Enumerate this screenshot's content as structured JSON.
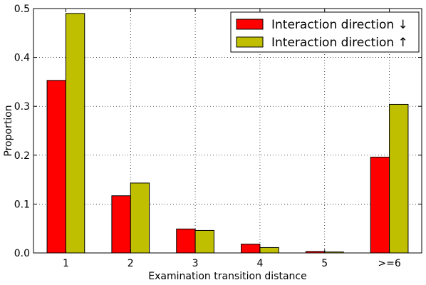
{
  "chart_data": {
    "type": "bar",
    "categories": [
      "1",
      "2",
      "3",
      "4",
      "5",
      ">=6"
    ],
    "series": [
      {
        "name": "Interaction direction ↓",
        "color": "#ff0000",
        "values": [
          0.353,
          0.117,
          0.049,
          0.018,
          0.003,
          0.196
        ]
      },
      {
        "name": "Interaction direction ↑",
        "color": "#bfbf00",
        "values": [
          0.49,
          0.143,
          0.046,
          0.011,
          0.002,
          0.304
        ]
      }
    ],
    "title": "",
    "xlabel": "Examination transition distance",
    "ylabel": "Proportion",
    "ylim": [
      0,
      0.5
    ],
    "yticks": [
      "0.0",
      "0.1",
      "0.2",
      "0.3",
      "0.4",
      "0.5"
    ],
    "grid": true,
    "legend_position": "top-right"
  }
}
